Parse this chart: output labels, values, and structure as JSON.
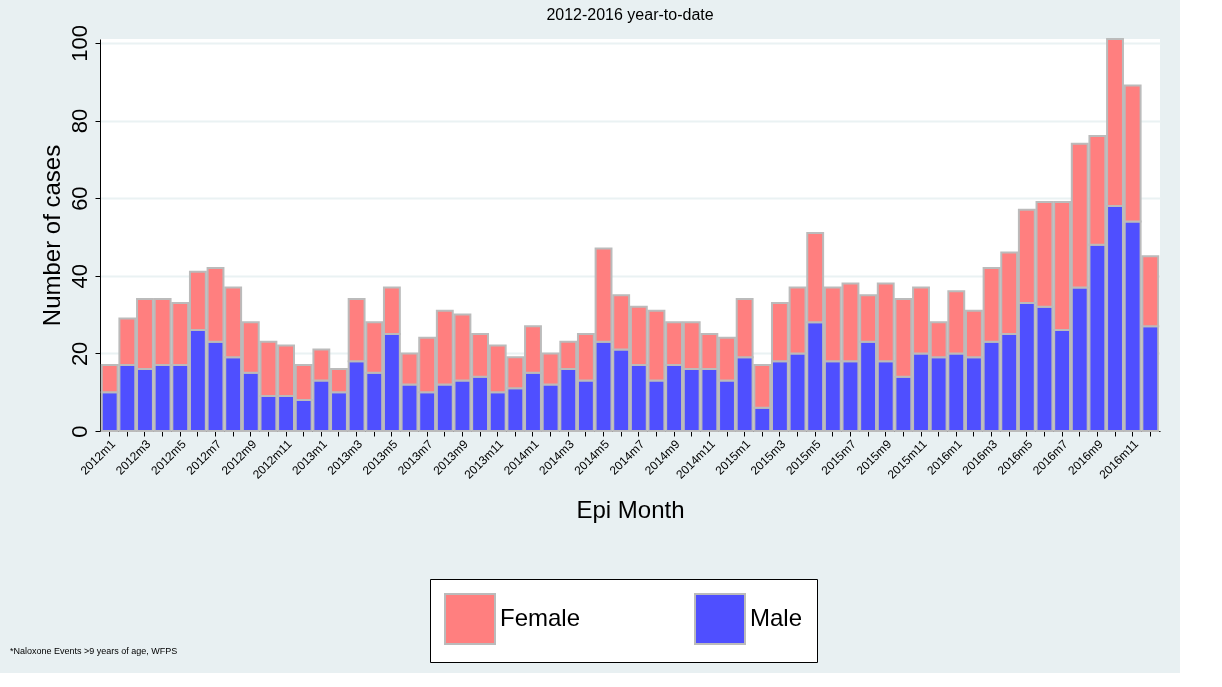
{
  "chart_data": {
    "type": "bar",
    "title": "2012-2016 year-to-date",
    "xlabel": "Epi Month",
    "ylabel": "Number of cases",
    "categories": [
      "2012m1",
      null,
      "2012m3",
      null,
      "2012m5",
      null,
      "2012m7",
      null,
      "2012m9",
      null,
      "2012m11",
      null,
      "2013m1",
      null,
      "2013m3",
      null,
      "2013m5",
      null,
      "2013m7",
      null,
      "2013m9",
      null,
      "2013m11",
      null,
      "2014m1",
      null,
      "2014m3",
      null,
      "2014m5",
      null,
      "2014m7",
      null,
      "2014m9",
      null,
      "2014m11",
      null,
      "2015m1",
      null,
      "2015m3",
      null,
      "2015m5",
      null,
      "2015m7",
      null,
      "2015m9",
      null,
      "2015m11",
      null,
      "2016m1",
      null,
      "2016m3",
      null,
      "2016m5",
      null,
      "2016m7",
      null,
      "2016m9",
      null,
      "2016m11",
      null
    ],
    "series": [
      {
        "name": "Male",
        "color": "#4f4fff",
        "values": [
          10,
          17,
          16,
          17,
          17,
          26,
          23,
          19,
          15,
          9,
          9,
          8,
          13,
          10,
          18,
          15,
          25,
          12,
          10,
          12,
          13,
          14,
          10,
          11,
          15,
          12,
          16,
          13,
          23,
          21,
          17,
          13,
          17,
          16,
          16,
          13,
          19,
          6,
          18,
          20,
          28,
          18,
          18,
          23,
          18,
          14,
          20,
          19,
          20,
          19,
          23,
          25,
          33,
          32,
          26,
          37,
          48,
          58,
          54,
          27
        ]
      },
      {
        "name": "Female",
        "color": "#ff7f7f",
        "values": [
          7,
          12,
          18,
          17,
          16,
          15,
          19,
          18,
          13,
          14,
          13,
          9,
          8,
          6,
          16,
          13,
          12,
          8,
          14,
          19,
          17,
          11,
          12,
          8,
          12,
          8,
          7,
          12,
          24,
          14,
          15,
          18,
          11,
          12,
          9,
          11,
          15,
          11,
          15,
          17,
          23,
          19,
          20,
          12,
          20,
          20,
          17,
          9,
          16,
          12,
          19,
          21,
          24,
          27,
          33,
          37,
          28,
          43,
          35,
          18
        ]
      }
    ],
    "stacked": true,
    "ylim": [
      0,
      101
    ],
    "yticks": [
      0,
      20,
      40,
      60,
      80,
      100
    ],
    "grid": "y",
    "legend": "bottom",
    "annotations": [
      "*Naloxone Events >9 years of age, WFPS"
    ]
  }
}
